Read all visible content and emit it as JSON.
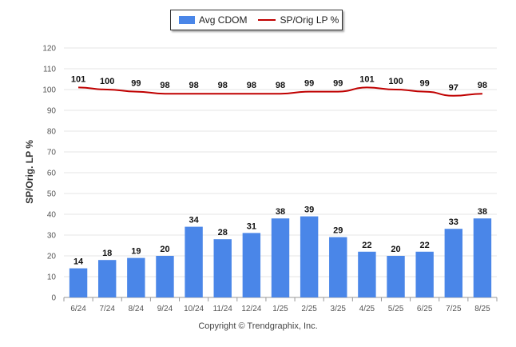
{
  "chart_data": {
    "type": "bar",
    "categories": [
      "6/24",
      "7/24",
      "8/24",
      "9/24",
      "10/24",
      "11/24",
      "12/24",
      "1/25",
      "2/25",
      "3/25",
      "4/25",
      "5/25",
      "6/25",
      "7/25",
      "8/25"
    ],
    "series": [
      {
        "name": "Avg CDOM",
        "type": "bar",
        "color": "#4a86e8",
        "values": [
          14,
          18,
          19,
          20,
          34,
          28,
          31,
          38,
          39,
          29,
          22,
          20,
          22,
          33,
          38
        ]
      },
      {
        "name": "SP/Orig LP %",
        "type": "line",
        "color": "#c00000",
        "values": [
          101,
          100,
          99,
          98,
          98,
          98,
          98,
          98,
          99,
          99,
          101,
          100,
          99,
          97,
          98
        ]
      }
    ],
    "ylabel": "SP/Orig. LP %",
    "ylim": [
      0,
      120
    ],
    "yticks": [
      0,
      10,
      20,
      30,
      40,
      50,
      60,
      70,
      80,
      90,
      100,
      110,
      120
    ],
    "grid": true,
    "legend_position": "top"
  },
  "copyright": "Copyright © Trendgraphix, Inc."
}
